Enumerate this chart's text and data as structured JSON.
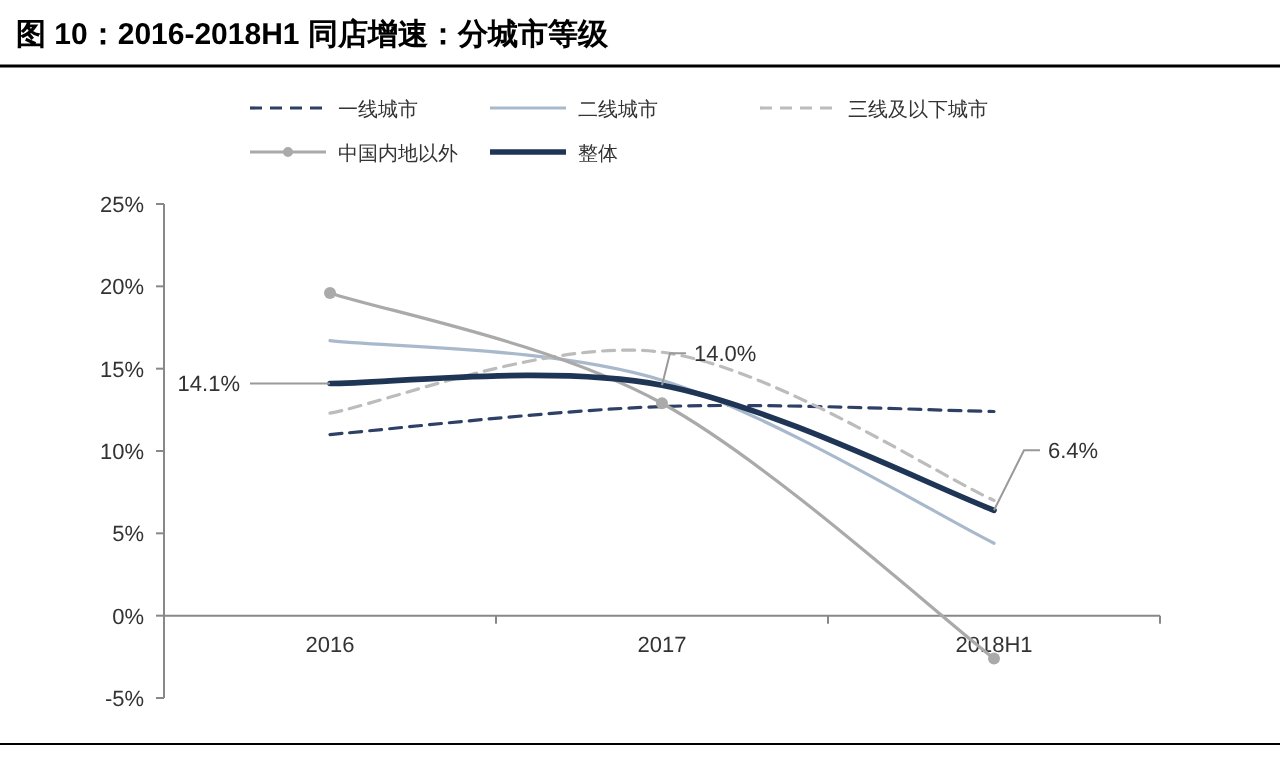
{
  "chart_data": {
    "type": "line",
    "title": "图 10：2016-2018H1 同店增速：分城市等级",
    "categories": [
      "2016",
      "2017",
      "2018H1"
    ],
    "series": [
      {
        "name": "一线城市",
        "color": "#2e4066",
        "line_style": "dashed",
        "values": [
          11.0,
          12.7,
          12.4
        ]
      },
      {
        "name": "二线城市",
        "color": "#a9b9cc",
        "line_style": "solid",
        "values": [
          16.7,
          14.3,
          4.4
        ]
      },
      {
        "name": "三线及以下城市",
        "color": "#bcbcbc",
        "line_style": "dashed",
        "values": [
          12.3,
          16.0,
          7.0
        ]
      },
      {
        "name": "中国内地以外",
        "color": "#aaaaaa",
        "line_style": "solid",
        "marker": "circle",
        "values": [
          19.6,
          12.9,
          -2.6
        ]
      },
      {
        "name": "整体",
        "color": "#1f3556",
        "line_style": "solid",
        "values": [
          14.1,
          14.0,
          6.4
        ]
      }
    ],
    "ylim": [
      -5,
      25
    ],
    "yticks": [
      {
        "value": -5,
        "label": "-5%"
      },
      {
        "value": 0,
        "label": "0%"
      },
      {
        "value": 5,
        "label": "5%"
      },
      {
        "value": 10,
        "label": "10%"
      },
      {
        "value": 15,
        "label": "15%"
      },
      {
        "value": 20,
        "label": "20%"
      },
      {
        "value": 25,
        "label": "25%"
      }
    ],
    "annotations": [
      {
        "text": "14.1%",
        "x": "2016",
        "y": 14.1
      },
      {
        "text": "14.0%",
        "x": "2017",
        "y": 14.0
      },
      {
        "text": "6.4%",
        "x": "2018H1",
        "y": 6.4
      }
    ],
    "legend": "top",
    "grid": false
  }
}
